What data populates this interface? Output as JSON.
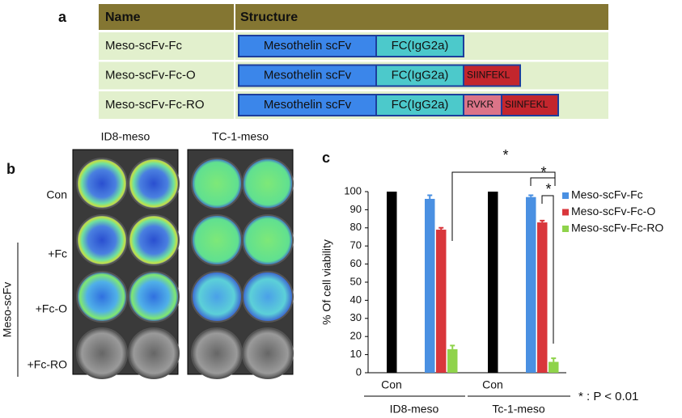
{
  "panel_a": {
    "letter": "a",
    "header": [
      "Name",
      "Structure"
    ],
    "rows": [
      {
        "name": "Meso-scFv-Fc",
        "segments": [
          {
            "label": "Mesothelin scFv",
            "color": "#3b86ea"
          },
          {
            "label": "FC(IgG2a)",
            "color": "#4cc9cb"
          }
        ]
      },
      {
        "name": "Meso-scFv-Fc-O",
        "segments": [
          {
            "label": "Mesothelin scFv",
            "color": "#3b86ea"
          },
          {
            "label": "FC(IgG2a)",
            "color": "#4cc9cb"
          },
          {
            "label": "SIINFEKL",
            "color": "#c3262d"
          }
        ]
      },
      {
        "name": "Meso-scFv-Fc-RO",
        "segments": [
          {
            "label": "Mesothelin scFv",
            "color": "#3b86ea"
          },
          {
            "label": "FC(IgG2a)",
            "color": "#4cc9cb"
          },
          {
            "label": "RVKR",
            "color": "#db7488"
          },
          {
            "label": "SIINFEKL",
            "color": "#c3262d"
          }
        ]
      }
    ]
  },
  "panel_b": {
    "letter": "b",
    "columns": [
      "ID8-meso",
      "TC-1-meso"
    ],
    "rows": [
      "Con",
      "+Fc",
      "+Fc-O",
      "+Fc-RO"
    ],
    "group_label": "Meso-scFv"
  },
  "chart_data": {
    "type": "bar",
    "letter": "c",
    "categories": [
      "ID8-meso",
      "Tc-1-meso"
    ],
    "control": {
      "labels": [
        "Con",
        "Con"
      ],
      "color": "#000000",
      "values": [
        100,
        100
      ]
    },
    "series": [
      {
        "name": "Meso-scFv-Fc",
        "color": "#4a90e2",
        "values": [
          96,
          97
        ],
        "errors": [
          2,
          1
        ]
      },
      {
        "name": "Meso-scFv-Fc-O",
        "color": "#d9363b",
        "values": [
          79,
          83
        ],
        "errors": [
          1,
          1
        ]
      },
      {
        "name": "Meso-scFv-Fc-RO",
        "color": "#8fd34b",
        "values": [
          13,
          6
        ],
        "errors": [
          2,
          2
        ]
      }
    ],
    "ylabel": "% Of cell viability",
    "ylim": [
      0,
      100
    ],
    "yticks": [
      0,
      10,
      20,
      30,
      40,
      50,
      60,
      70,
      80,
      90,
      100
    ],
    "significance": [
      "*",
      "*",
      "*"
    ],
    "annotation": "* : P < 0.01",
    "legend": "right"
  }
}
